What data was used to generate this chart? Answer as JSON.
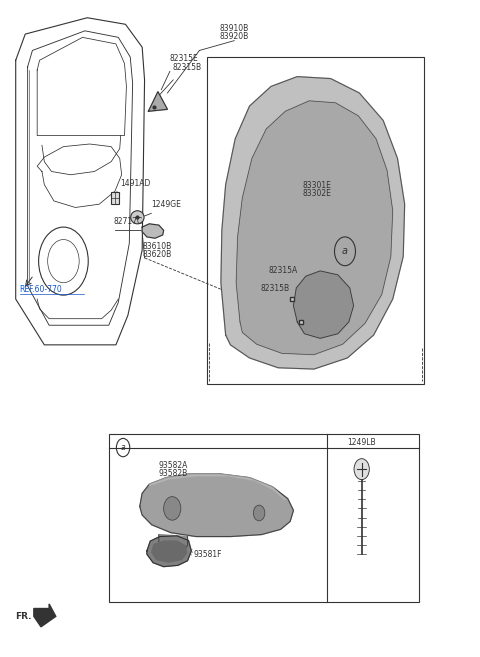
{
  "bg_color": "#ffffff",
  "fig_width": 4.8,
  "fig_height": 6.57,
  "dpi": 100,
  "circle_a_upper": [
    0.72,
    0.618
  ],
  "circle_a_lower": [
    0.255,
    0.318
  ],
  "darkgray": "#333333",
  "blue": "#1155cc",
  "lw": 0.8,
  "fs": 5.5
}
